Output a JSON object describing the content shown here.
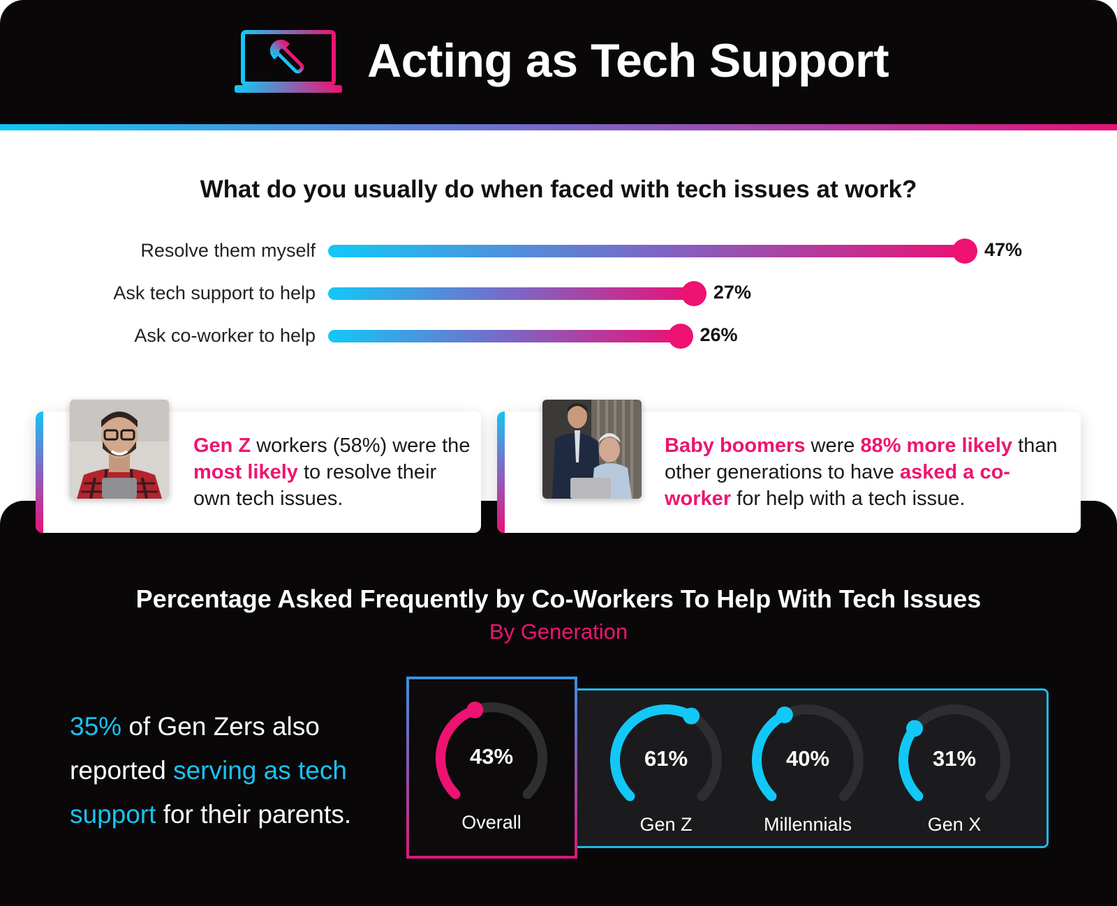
{
  "header": {
    "title": "Acting as Tech Support",
    "icon": "laptop-wrench-icon"
  },
  "colors": {
    "pink": "#ee1272",
    "cyan": "#12c8f7",
    "dark": "#0a0708"
  },
  "chart_data": [
    {
      "type": "bar",
      "title": "What do you usually do when faced with tech issues at work?",
      "categories": [
        "Resolve them myself",
        "Ask tech support to help",
        "Ask co-worker to help"
      ],
      "values": [
        47,
        27,
        26
      ],
      "value_labels": [
        "47%",
        "27%",
        "26%"
      ],
      "orientation": "horizontal",
      "unit": "%"
    },
    {
      "type": "gauge",
      "title": "Percentage Asked Frequently by Co-Workers To Help With Tech Issues",
      "subtitle": "By Generation",
      "categories": [
        "Overall",
        "Gen Z",
        "Millennials",
        "Gen X"
      ],
      "values": [
        43,
        61,
        40,
        31
      ],
      "value_labels": [
        "43%",
        "61%",
        "40%",
        "31%"
      ],
      "unit": "%"
    }
  ],
  "cards": {
    "genz": {
      "p1": "Gen Z",
      "p2": " workers (58%) were the ",
      "p3": "most likely",
      "p4": " to resolve their own tech issues."
    },
    "boomers": {
      "p1": "Baby boomers",
      "p2": " were ",
      "p3": "88% more likely",
      "p4": " than other generations to have ",
      "p5": "asked a co-worker",
      "p6": " for help with a tech issue."
    }
  },
  "note": {
    "p1": "35%",
    "p2": " of Gen Zers also reported ",
    "p3": "serving as tech support",
    "p4": " for their parents."
  }
}
